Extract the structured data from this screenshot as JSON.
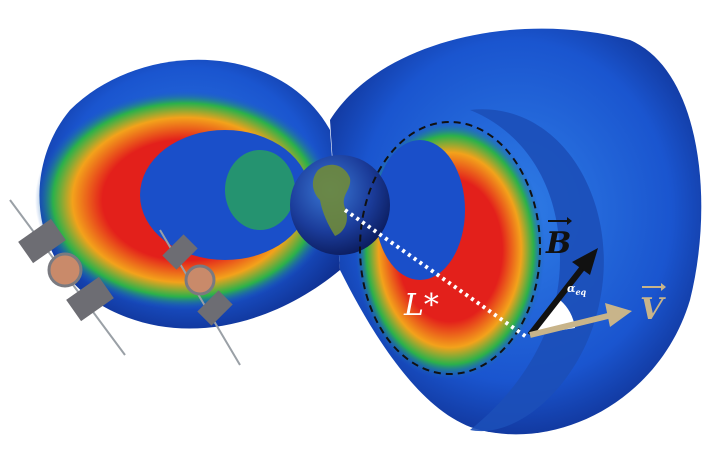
{
  "labels": {
    "l_star": "L*",
    "b_field": "B",
    "velocity": "V",
    "pitch_angle": "α",
    "pitch_angle_sub": "eq"
  },
  "colors": {
    "belt_outer": "#1a4fc9",
    "belt_mid": "#2bb14a",
    "belt_core": "#e3201b",
    "earth": "#1b3c9a",
    "b_arrow": "#111111",
    "v_arrow": "#c8b48a"
  }
}
